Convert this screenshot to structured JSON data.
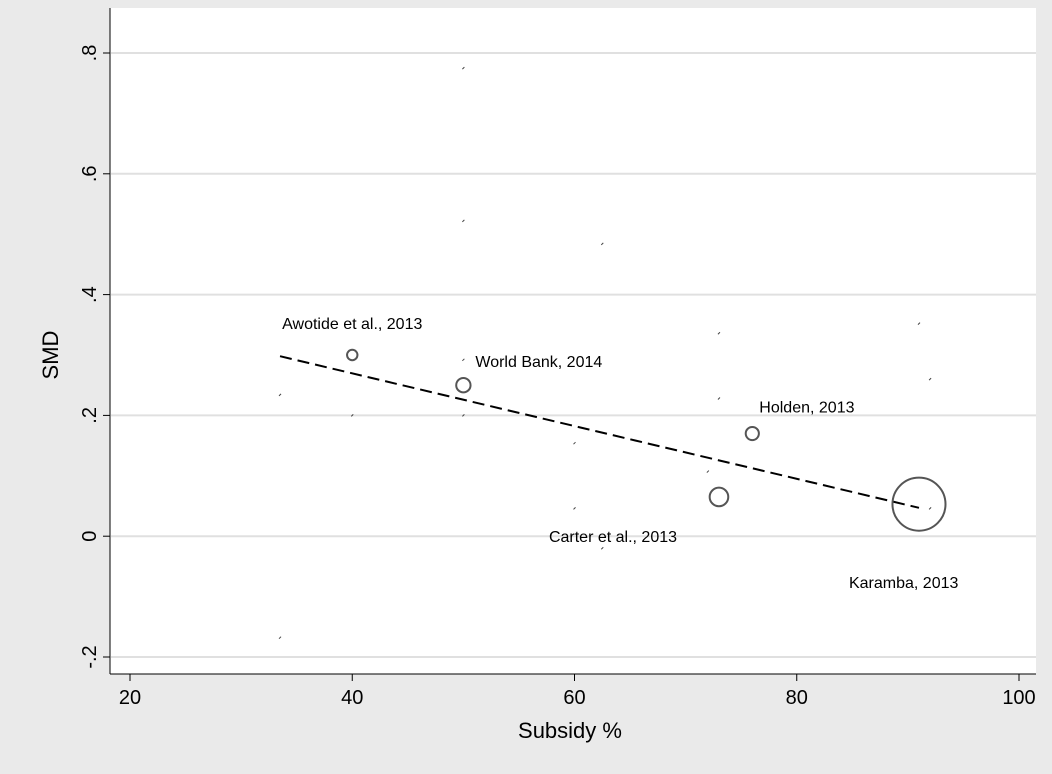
{
  "chart_data": {
    "type": "scatter",
    "title": "",
    "xlabel": "Subsidy %",
    "ylabel": "SMD",
    "xlim": [
      20,
      100
    ],
    "ylim": [
      -0.2,
      0.8
    ],
    "x_ticks": [
      20,
      40,
      60,
      80,
      100
    ],
    "x_tick_labels": [
      "20",
      "40",
      "60",
      "80",
      "100"
    ],
    "y_ticks": [
      -0.2,
      0,
      0.2,
      0.4,
      0.6,
      0.8
    ],
    "y_tick_labels": [
      "-.2",
      "0",
      ".2",
      ".4",
      ".6",
      ".8"
    ],
    "grid": true,
    "colors": {
      "background": "#eaeaea",
      "plot_area": "#ffffff",
      "gridline": "#e0e0e0",
      "marker": "#555555",
      "fit_line": "#000000"
    },
    "points": [
      {
        "label": "Awotide et al., 2013",
        "x": 40,
        "y": 0.3,
        "weight": 1
      },
      {
        "label": "World Bank, 2014",
        "x": 50,
        "y": 0.25,
        "weight": 1.9
      },
      {
        "label": "Holden, 2013",
        "x": 76,
        "y": 0.17,
        "weight": 1.6
      },
      {
        "label": "Carter et al., 2013",
        "x": 73,
        "y": 0.065,
        "weight": 3.2
      },
      {
        "label": "Karamba, 2013",
        "x": 91,
        "y": 0.053,
        "weight": 26
      }
    ],
    "fit_line": {
      "style": "dashed",
      "x": [
        33.5,
        91
      ],
      "y": [
        0.298,
        0.047
      ]
    },
    "minor_marks": [
      {
        "x": 50,
        "y": 0.775
      },
      {
        "x": 50,
        "y": 0.522
      },
      {
        "x": 62.5,
        "y": 0.484
      },
      {
        "x": 73,
        "y": 0.336
      },
      {
        "x": 91,
        "y": 0.352
      },
      {
        "x": 92,
        "y": 0.26
      },
      {
        "x": 50,
        "y": 0.292
      },
      {
        "x": 33.5,
        "y": 0.234
      },
      {
        "x": 40,
        "y": 0.2
      },
      {
        "x": 50,
        "y": 0.2
      },
      {
        "x": 73,
        "y": 0.228
      },
      {
        "x": 60,
        "y": 0.154
      },
      {
        "x": 72,
        "y": 0.107
      },
      {
        "x": 60,
        "y": 0.046
      },
      {
        "x": 62.5,
        "y": -0.02
      },
      {
        "x": 92,
        "y": 0.046
      },
      {
        "x": 33.5,
        "y": -0.168
      }
    ]
  }
}
